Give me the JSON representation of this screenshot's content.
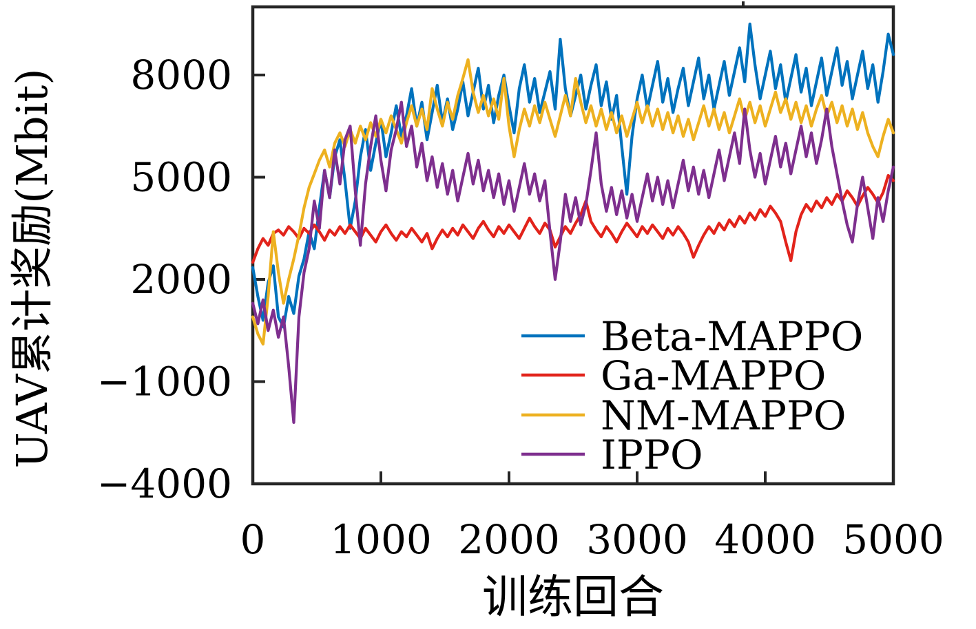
{
  "figure": {
    "background": "#ffffff",
    "axis_color": "#262626",
    "text_color": "#000000"
  },
  "chart_data": {
    "type": "line",
    "title": "",
    "xlabel": "训练回合",
    "ylabel": "UAV累计奖励(Mbit)",
    "xlim": [
      0,
      5000
    ],
    "ylim": [
      -4000,
      10000
    ],
    "grid": false,
    "legend_position": "inside-right-middle",
    "legend_frame": false,
    "x_ticks": [
      {
        "value": 0,
        "label": "0"
      },
      {
        "value": 1000,
        "label": "1000"
      },
      {
        "value": 2000,
        "label": "2000"
      },
      {
        "value": 3000,
        "label": "3000"
      },
      {
        "value": 4000,
        "label": "4000"
      },
      {
        "value": 5000,
        "label": "5000"
      }
    ],
    "y_ticks": [
      {
        "value": -4000,
        "label": "−4000"
      },
      {
        "value": -1000,
        "label": "−1000"
      },
      {
        "value": 2000,
        "label": "2000"
      },
      {
        "value": 5000,
        "label": "5000"
      },
      {
        "value": 8000,
        "label": "8000"
      }
    ],
    "x": [
      0,
      40,
      80,
      120,
      160,
      200,
      240,
      280,
      320,
      360,
      400,
      440,
      480,
      520,
      560,
      600,
      640,
      680,
      720,
      760,
      800,
      840,
      880,
      920,
      960,
      1000,
      1040,
      1080,
      1120,
      1160,
      1200,
      1240,
      1280,
      1320,
      1360,
      1400,
      1440,
      1480,
      1520,
      1560,
      1600,
      1640,
      1680,
      1720,
      1760,
      1800,
      1840,
      1880,
      1920,
      1960,
      2000,
      2040,
      2080,
      2120,
      2160,
      2200,
      2240,
      2280,
      2320,
      2360,
      2400,
      2440,
      2480,
      2520,
      2560,
      2600,
      2640,
      2680,
      2720,
      2760,
      2800,
      2840,
      2880,
      2920,
      2960,
      3000,
      3040,
      3080,
      3120,
      3160,
      3200,
      3240,
      3280,
      3320,
      3360,
      3400,
      3440,
      3480,
      3520,
      3560,
      3600,
      3640,
      3680,
      3720,
      3760,
      3800,
      3840,
      3880,
      3920,
      3960,
      4000,
      4040,
      4080,
      4120,
      4160,
      4200,
      4240,
      4280,
      4320,
      4360,
      4400,
      4440,
      4480,
      4520,
      4560,
      4600,
      4640,
      4680,
      4720,
      4760,
      4800,
      4840,
      4880,
      4920,
      4960,
      5000
    ],
    "series": [
      {
        "name": "Beta-MAPPO",
        "color": "#0072BD",
        "values": [
          2350,
          1500,
          800,
          1900,
          2400,
          900,
          600,
          1500,
          1000,
          2100,
          2600,
          3400,
          2900,
          4100,
          5200,
          4400,
          5600,
          6100,
          4900,
          3500,
          4300,
          5600,
          6400,
          5200,
          6000,
          6700,
          5600,
          6300,
          7100,
          6200,
          6800,
          7600,
          6500,
          7200,
          6100,
          6900,
          7700,
          6600,
          7300,
          6400,
          7000,
          7800,
          6800,
          7500,
          8200,
          7000,
          7700,
          6600,
          7400,
          8000,
          7100,
          6300,
          7600,
          8300,
          7200,
          7900,
          6900,
          7500,
          8100,
          7000,
          9050,
          7600,
          6800,
          7400,
          8000,
          7000,
          7700,
          8300,
          7100,
          7800,
          6700,
          7400,
          5900,
          4500,
          6200,
          7300,
          8000,
          7000,
          7700,
          8400,
          7200,
          7900,
          6900,
          7600,
          8200,
          7100,
          7800,
          8500,
          7300,
          8000,
          7000,
          7700,
          8400,
          7400,
          8100,
          8800,
          7800,
          9500,
          8300,
          7300,
          8000,
          8700,
          7600,
          8300,
          7200,
          7900,
          8600,
          7500,
          8200,
          7100,
          7800,
          8500,
          7400,
          8100,
          8800,
          7700,
          8400,
          7300,
          8000,
          8700,
          7600,
          8300,
          7200,
          8100,
          9200,
          8600
        ]
      },
      {
        "name": "Ga-MAPPO",
        "color": "#E2231B",
        "values": [
          2500,
          2900,
          3200,
          3000,
          3350,
          3450,
          3300,
          3550,
          3400,
          3200,
          3500,
          3350,
          3600,
          3400,
          3150,
          3450,
          3300,
          3550,
          3350,
          3600,
          3400,
          3200,
          3500,
          3300,
          3100,
          3400,
          3600,
          3350,
          3150,
          3400,
          3250,
          3500,
          3300,
          3100,
          3350,
          2900,
          3200,
          3450,
          3250,
          3500,
          3300,
          3600,
          3400,
          3200,
          3500,
          3700,
          3450,
          3250,
          3550,
          3350,
          3600,
          3400,
          3200,
          3500,
          3800,
          3550,
          3350,
          3650,
          3450,
          2950,
          3250,
          3550,
          3350,
          3650,
          3900,
          4300,
          3700,
          3450,
          3250,
          3550,
          3350,
          3100,
          3400,
          3650,
          3450,
          3250,
          3550,
          3350,
          3600,
          3400,
          3200,
          3500,
          3300,
          3550,
          3350,
          3100,
          2650,
          3000,
          3300,
          3550,
          3350,
          3650,
          3450,
          3750,
          3550,
          3850,
          3650,
          3950,
          3750,
          4050,
          3850,
          4150,
          3950,
          3700,
          3100,
          2550,
          3400,
          3900,
          4200,
          4000,
          4300,
          4100,
          4400,
          4200,
          4500,
          4300,
          4600,
          4400,
          4150,
          4450,
          4700,
          4500,
          4250,
          4550,
          5050,
          4900
        ]
      },
      {
        "name": "NM-MAPPO",
        "color": "#EDB120",
        "values": [
          900,
          400,
          100,
          1500,
          3400,
          2200,
          1300,
          2000,
          2600,
          3300,
          4100,
          4700,
          5100,
          5500,
          5800,
          5300,
          6000,
          6300,
          5900,
          6400,
          6000,
          6500,
          6100,
          6600,
          6200,
          6700,
          6300,
          6800,
          6400,
          6000,
          6600,
          7100,
          6500,
          7000,
          6400,
          7600,
          7000,
          6500,
          7200,
          6700,
          7400,
          7900,
          8450,
          7500,
          6900,
          7400,
          6800,
          7300,
          6700,
          7900,
          6500,
          5600,
          6400,
          7000,
          6500,
          7100,
          6600,
          7200,
          6700,
          6200,
          6800,
          7400,
          6800,
          7900,
          7200,
          6600,
          7100,
          6500,
          7000,
          6400,
          6900,
          6300,
          6800,
          6200,
          6700,
          7200,
          6600,
          7100,
          6500,
          7000,
          6400,
          6900,
          6300,
          6800,
          6200,
          6700,
          6100,
          6600,
          7100,
          6500,
          7000,
          6400,
          6900,
          6300,
          6800,
          7300,
          6700,
          7200,
          6600,
          7100,
          6500,
          7000,
          7500,
          6900,
          7300,
          6700,
          7200,
          6600,
          7100,
          6500,
          7000,
          7400,
          6800,
          7200,
          6600,
          7100,
          6500,
          7000,
          6400,
          6900,
          6300,
          5900,
          5600,
          6200,
          6700,
          6300
        ]
      },
      {
        "name": "IPPO",
        "color": "#7E2F8E",
        "values": [
          1300,
          700,
          1400,
          500,
          1100,
          300,
          900,
          -550,
          -2200,
          900,
          2200,
          2900,
          4300,
          3500,
          5200,
          4400,
          5800,
          4800,
          6100,
          6500,
          4600,
          3000,
          4800,
          5900,
          6800,
          5500,
          4600,
          5800,
          6400,
          7200,
          5900,
          6500,
          5300,
          6000,
          4900,
          5600,
          4700,
          5400,
          4500,
          5200,
          4300,
          5000,
          5700,
          4800,
          5500,
          4600,
          5200,
          4400,
          5100,
          4200,
          4900,
          4000,
          4700,
          5400,
          4500,
          5100,
          4300,
          4900,
          3400,
          2000,
          3100,
          4500,
          3700,
          4400,
          3600,
          4200,
          5200,
          6300,
          4800,
          4000,
          4700,
          3900,
          4600,
          3800,
          4500,
          3700,
          4400,
          5100,
          4300,
          5000,
          4200,
          4900,
          4100,
          4800,
          5500,
          4600,
          5300,
          4500,
          5200,
          4400,
          5100,
          5800,
          4900,
          5600,
          6300,
          5400,
          7000,
          5800,
          5000,
          5700,
          4800,
          5500,
          6200,
          5300,
          6000,
          5100,
          5800,
          6500,
          5600,
          6300,
          5400,
          6100,
          7000,
          5900,
          5100,
          4300,
          3600,
          3100,
          4200,
          5000,
          4100,
          3200,
          4400,
          3700,
          4600,
          5300
        ]
      }
    ]
  }
}
